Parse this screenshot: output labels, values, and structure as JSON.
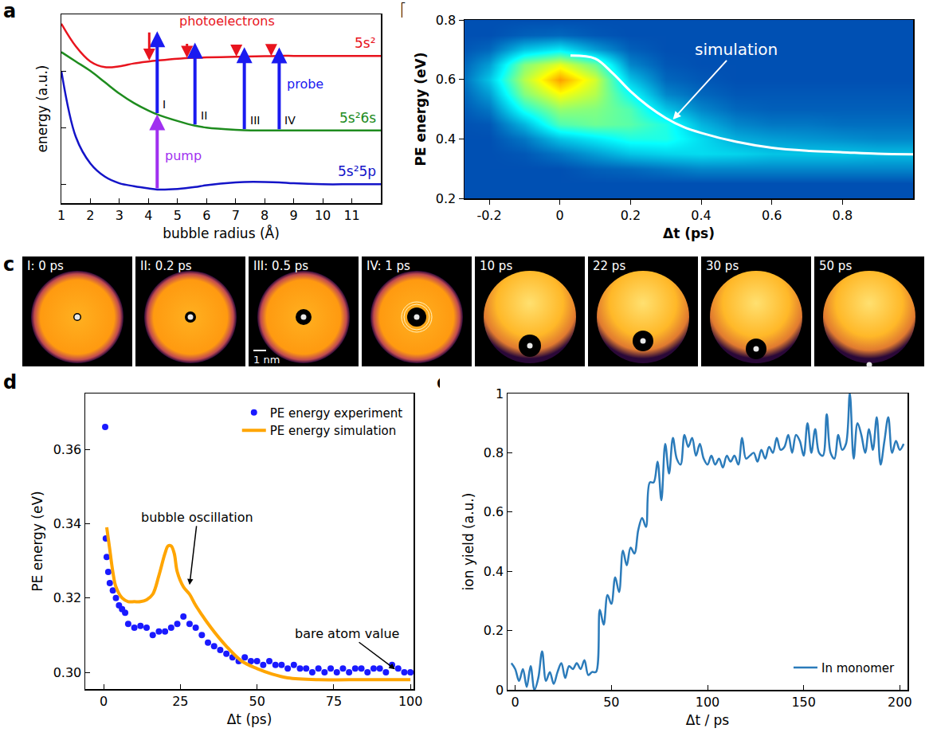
{
  "chart_data": [
    {
      "panel": "a",
      "type": "line",
      "x_label": "bubble radius (Å)",
      "y_label": "energy (a.u.)",
      "x": [
        1,
        1.5,
        2,
        2.5,
        3,
        3.5,
        4,
        4.3,
        5,
        5.6,
        6,
        7,
        7.3,
        8,
        8.5,
        9,
        10,
        11,
        12
      ],
      "series": [
        {
          "name": "5s²",
          "color": "#e8141e",
          "values": [
            9.5,
            8.3,
            7.5,
            7.2,
            7.25,
            7.4,
            7.5,
            7.55,
            7.65,
            7.7,
            7.72,
            7.75,
            7.76,
            7.78,
            7.8,
            7.8,
            7.8,
            7.8,
            7.8
          ]
        },
        {
          "name": "5s²6s",
          "color": "#1e8c1e",
          "values": [
            8.0,
            7.5,
            7.0,
            6.4,
            5.8,
            5.3,
            4.9,
            4.7,
            4.35,
            4.1,
            4.0,
            3.88,
            3.86,
            3.85,
            3.85,
            3.85,
            3.85,
            3.85,
            3.85
          ]
        },
        {
          "name": "5s²5p",
          "color": "#1414c8",
          "values": [
            7.0,
            3.5,
            2.1,
            1.4,
            1.05,
            0.9,
            0.78,
            0.72,
            0.75,
            0.85,
            0.95,
            1.1,
            1.12,
            1.12,
            1.1,
            1.05,
            1.0,
            1.0,
            1.0
          ]
        }
      ],
      "xlim": [
        1,
        12
      ],
      "xticks": [
        1,
        2,
        3,
        4,
        5,
        6,
        7,
        8,
        9,
        10,
        11
      ],
      "ylim": [
        0,
        10
      ],
      "yticks": [
        1,
        4,
        7
      ],
      "tick_labels": "x",
      "transitions": {
        "pump_x": 4.3,
        "probe_x": [
          4.3,
          5.6,
          7.3,
          8.5
        ],
        "probe_labels": [
          "I",
          "II",
          "III",
          "IV"
        ],
        "probe_energy": 4.4
      },
      "annotations": [
        {
          "text": "photoelectrons",
          "color": "#e8141e"
        },
        {
          "text": "probe",
          "color": "#1a1af0"
        },
        {
          "text": "pump",
          "color": "#a030f0"
        }
      ]
    },
    {
      "panel": "b",
      "type": "heatmap",
      "x_label": "Δt (ps)",
      "y_label": "PE energy (eV)",
      "x": [
        -0.3,
        -0.2,
        -0.1,
        0,
        0.1,
        0.2,
        0.3,
        0.4,
        0.5,
        0.6,
        0.7,
        0.8,
        0.9,
        1.0
      ],
      "y": [
        0.2,
        0.25,
        0.3,
        0.35,
        0.4,
        0.45,
        0.5,
        0.55,
        0.6,
        0.65,
        0.7,
        0.75,
        0.8
      ],
      "z": [
        [
          0.15,
          0.15,
          0.15,
          0.15,
          0.15,
          0.15,
          0.15,
          0.15,
          0.15,
          0.15,
          0.15,
          0.15,
          0.15,
          0.15
        ],
        [
          0.15,
          0.15,
          0.15,
          0.15,
          0.15,
          0.15,
          0.15,
          0.15,
          0.15,
          0.15,
          0.15,
          0.15,
          0.15,
          0.15
        ],
        [
          0.15,
          0.15,
          0.15,
          0.15,
          0.17,
          0.18,
          0.2,
          0.22,
          0.22,
          0.22,
          0.22,
          0.22,
          0.22,
          0.22
        ],
        [
          0.15,
          0.15,
          0.16,
          0.2,
          0.25,
          0.3,
          0.32,
          0.33,
          0.32,
          0.3,
          0.3,
          0.3,
          0.29,
          0.29
        ],
        [
          0.15,
          0.15,
          0.2,
          0.3,
          0.35,
          0.4,
          0.4,
          0.33,
          0.27,
          0.25,
          0.24,
          0.23,
          0.22,
          0.22
        ],
        [
          0.15,
          0.16,
          0.28,
          0.45,
          0.48,
          0.46,
          0.4,
          0.28,
          0.22,
          0.2,
          0.2,
          0.19,
          0.19,
          0.19
        ],
        [
          0.15,
          0.2,
          0.4,
          0.52,
          0.5,
          0.45,
          0.3,
          0.22,
          0.18,
          0.17,
          0.17,
          0.17,
          0.17,
          0.17
        ],
        [
          0.15,
          0.25,
          0.5,
          0.62,
          0.55,
          0.38,
          0.22,
          0.18,
          0.16,
          0.16,
          0.16,
          0.16,
          0.16,
          0.16
        ],
        [
          0.15,
          0.3,
          0.55,
          0.72,
          0.58,
          0.3,
          0.18,
          0.16,
          0.15,
          0.15,
          0.15,
          0.15,
          0.15,
          0.15
        ],
        [
          0.15,
          0.25,
          0.5,
          0.6,
          0.48,
          0.22,
          0.16,
          0.15,
          0.15,
          0.15,
          0.15,
          0.15,
          0.15,
          0.15
        ],
        [
          0.15,
          0.18,
          0.3,
          0.35,
          0.25,
          0.17,
          0.15,
          0.15,
          0.15,
          0.15,
          0.15,
          0.15,
          0.15,
          0.15
        ],
        [
          0.15,
          0.15,
          0.17,
          0.18,
          0.16,
          0.15,
          0.15,
          0.15,
          0.15,
          0.15,
          0.15,
          0.15,
          0.15,
          0.15
        ],
        [
          0.15,
          0.15,
          0.15,
          0.15,
          0.15,
          0.15,
          0.15,
          0.15,
          0.15,
          0.15,
          0.15,
          0.15,
          0.15,
          0.15
        ]
      ],
      "zlim": [
        0,
        1
      ],
      "series": [
        {
          "type": "line",
          "color": "#ffffff",
          "x": [
            0.03,
            0.1,
            0.15,
            0.2,
            0.25,
            0.3,
            0.35,
            0.4,
            0.5,
            0.6,
            0.7,
            0.8,
            0.9,
            1.0
          ],
          "values": [
            0.68,
            0.67,
            0.62,
            0.56,
            0.51,
            0.47,
            0.44,
            0.42,
            0.39,
            0.37,
            0.36,
            0.355,
            0.35,
            0.348
          ]
        }
      ],
      "xlim": [
        -0.27,
        1.0
      ],
      "xticks": [
        -0.2,
        0,
        0.2,
        0.4,
        0.6,
        0.8
      ],
      "ylim": [
        0.2,
        0.8
      ],
      "yticks": [
        0.2,
        0.4,
        0.6,
        0.8
      ],
      "annotations": [
        {
          "text": "simulation",
          "x": 0.32,
          "y": 0.465
        }
      ]
    },
    {
      "panel": "c",
      "type": "snapshots",
      "frames": [
        "I: 0 ps",
        "II: 0.2 ps",
        "III: 0.5 ps",
        "IV: 1 ps",
        "10 ps",
        "22 ps",
        "30 ps",
        "50 ps"
      ],
      "scale_bar": "1 nm"
    },
    {
      "panel": "d",
      "type": "scatter",
      "x_label": "Δt (ps)",
      "y_label": "PE energy (eV)",
      "series": [
        {
          "name": "PE energy experiment",
          "type": "scatter",
          "marker": "circle",
          "color": "#1a1aff",
          "x": [
            0.5,
            0.7,
            1,
            1.5,
            2,
            3,
            4,
            5,
            6,
            7,
            8,
            10,
            12,
            14,
            16,
            18,
            20,
            22,
            24,
            26,
            28,
            30,
            32,
            34,
            36,
            38,
            40,
            42,
            44,
            46,
            48,
            50,
            52,
            54,
            56,
            58,
            60,
            62,
            64,
            66,
            68,
            70,
            72,
            74,
            76,
            78,
            80,
            82,
            84,
            86,
            88,
            90,
            92,
            94,
            96,
            98,
            100
          ],
          "values": [
            0.366,
            0.336,
            0.331,
            0.327,
            0.324,
            0.322,
            0.32,
            0.318,
            0.317,
            0.316,
            0.313,
            0.312,
            0.3125,
            0.312,
            0.31,
            0.311,
            0.311,
            0.312,
            0.313,
            0.315,
            0.313,
            0.312,
            0.31,
            0.308,
            0.307,
            0.306,
            0.305,
            0.304,
            0.303,
            0.304,
            0.303,
            0.303,
            0.302,
            0.303,
            0.302,
            0.302,
            0.301,
            0.302,
            0.301,
            0.301,
            0.3,
            0.301,
            0.3,
            0.301,
            0.3,
            0.301,
            0.3,
            0.301,
            0.301,
            0.3,
            0.301,
            0.301,
            0.3,
            0.302,
            0.301,
            0.3,
            0.3
          ]
        },
        {
          "name": "PE energy simulation",
          "type": "line",
          "color": "#ffa500",
          "x": [
            1,
            2,
            3,
            4,
            6,
            8,
            10,
            12,
            14,
            16,
            18,
            20,
            21,
            22,
            23,
            24,
            26,
            28,
            30,
            35,
            40,
            45,
            50,
            55,
            60,
            70,
            80,
            90,
            100
          ],
          "values": [
            0.339,
            0.333,
            0.327,
            0.323,
            0.32,
            0.319,
            0.319,
            0.319,
            0.3195,
            0.321,
            0.326,
            0.332,
            0.334,
            0.334,
            0.332,
            0.327,
            0.323,
            0.321,
            0.318,
            0.312,
            0.307,
            0.303,
            0.301,
            0.2995,
            0.2985,
            0.298,
            0.298,
            0.298,
            0.298
          ]
        }
      ],
      "xlim": [
        -6,
        101
      ],
      "xticks": [
        0,
        25,
        50,
        75,
        100
      ],
      "ylim": [
        0.2955,
        0.375
      ],
      "yticks": [
        {
          "value": 0.3,
          "label": "0.30"
        },
        {
          "value": 0.32,
          "label": "0.32"
        },
        {
          "value": 0.34,
          "label": "0.34"
        },
        {
          "value": 0.36,
          "label": "0.36"
        }
      ],
      "legend": "top right",
      "annotations": [
        {
          "text": "bubble oscillation",
          "x": 28,
          "y": 0.3235
        },
        {
          "text": "bare atom value",
          "x": 95,
          "y": 0.3008
        }
      ]
    },
    {
      "panel": "e",
      "type": "line",
      "x_label": "Δt / ps",
      "y_label": "ion yield (a.u.)",
      "x": [
        -2,
        0,
        2,
        4,
        6,
        8,
        10,
        12,
        14,
        16,
        18,
        20,
        22,
        24,
        26,
        28,
        30,
        32,
        34,
        36,
        38,
        40,
        42,
        44,
        46,
        48,
        50,
        52,
        54,
        56,
        58,
        60,
        62,
        64,
        66,
        68,
        70,
        72,
        74,
        76,
        78,
        80,
        82,
        84,
        86,
        88,
        90,
        92,
        94,
        96,
        98,
        100,
        102,
        104,
        106,
        108,
        110,
        112,
        114,
        116,
        118,
        120,
        122,
        124,
        126,
        128,
        130,
        132,
        134,
        136,
        138,
        140,
        142,
        144,
        146,
        148,
        150,
        152,
        154,
        156,
        158,
        160,
        162,
        164,
        166,
        168,
        170,
        172,
        174,
        176,
        178,
        180,
        182,
        184,
        186,
        188,
        190,
        192,
        194,
        196,
        198,
        200,
        202
      ],
      "series": [
        {
          "name": "In monomer",
          "color": "#2b7bba",
          "values": [
            0.09,
            0.07,
            0.03,
            0.07,
            0.01,
            0.08,
            0,
            0.04,
            0.13,
            0.03,
            0.06,
            0.02,
            0.06,
            0.09,
            0.04,
            0.08,
            0.07,
            0.09,
            0.07,
            0.1,
            0.05,
            0.06,
            0.06,
            0.27,
            0.22,
            0.32,
            0.29,
            0.38,
            0.33,
            0.47,
            0.42,
            0.48,
            0.46,
            0.54,
            0.58,
            0.55,
            0.7,
            0.7,
            0.77,
            0.64,
            0.83,
            0.73,
            0.85,
            0.78,
            0.76,
            0.86,
            0.82,
            0.85,
            0.79,
            0.83,
            0.78,
            0.76,
            0.79,
            0.76,
            0.78,
            0.75,
            0.79,
            0.77,
            0.79,
            0.76,
            0.85,
            0.78,
            0.79,
            0.8,
            0.77,
            0.81,
            0.78,
            0.82,
            0.8,
            0.85,
            0.81,
            0.82,
            0.86,
            0.8,
            0.86,
            0.84,
            0.79,
            0.9,
            0.8,
            0.88,
            0.8,
            0.79,
            0.93,
            0.8,
            0.78,
            0.86,
            0.81,
            0.83,
            1.0,
            0.78,
            0.9,
            0.86,
            0.8,
            0.88,
            0.81,
            0.92,
            0.76,
            0.84,
            0.92,
            0.8,
            0.84,
            0.81,
            0.83
          ]
        }
      ],
      "xlim": [
        -4,
        204
      ],
      "xticks": [
        0,
        50,
        100,
        150,
        200
      ],
      "ylim": [
        0,
        1
      ],
      "yticks": [
        0,
        0.2,
        0.4,
        0.6,
        0.8,
        1
      ],
      "legend": "bottom right"
    }
  ]
}
